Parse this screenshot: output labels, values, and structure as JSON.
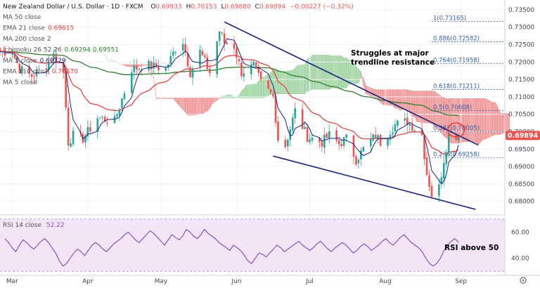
{
  "header": {
    "symbol": "New Zealand Dollar / U.S. Dollar · 1D · FXCM",
    "o_label": "O",
    "o": "0.69933",
    "h_label": "H",
    "h": "0.70153",
    "l_label": "L",
    "l": "0.69880",
    "c_label": "C",
    "c": "0.69894",
    "change": "−0.00227 (−0.32%)"
  },
  "legend": [
    {
      "label": "MA 50 close",
      "value": "",
      "color": "#777777"
    },
    {
      "label": "EMA 21 close",
      "value": "0.69615",
      "color": "#e53935"
    },
    {
      "label": "MA 200 close 2",
      "value": "",
      "color": "#777777"
    },
    {
      "label": "Ichimoku 26 52 26",
      "value": "0.69294 0.69551",
      "color": "#2e7d32"
    },
    {
      "label": "MA 5 close",
      "value": "0.69729",
      "color": "#1a237e"
    },
    {
      "label": "EMA 110 close",
      "value": "0.70370",
      "color": "#e53935"
    },
    {
      "label": "MA 5 close",
      "value": "",
      "color": "#777777"
    }
  ],
  "colors": {
    "up": "#26a69a",
    "down": "#ef5350",
    "trendline": "#1a237e",
    "ema21": "#e53935",
    "ma": "#1a237e",
    "ema110": "#2e7d32",
    "kumo_bull": "#a5d6a7",
    "kumo_bear": "#ef9a9a",
    "fib": "#3a5ea8",
    "rsi": "#7e57c2",
    "rsi_bg": "#f3e5f5",
    "price_badge": "#ef5350"
  },
  "annotations": {
    "trendline_note": [
      "Struggles at major",
      "trendline resistance"
    ],
    "rsi_note": "RSI above 50"
  },
  "price_badge": "0.69894",
  "chart_data": {
    "type": "candlestick",
    "ylim": [
      0.6765,
      0.737
    ],
    "y_ticks": [
      "0.73500",
      "0.73000",
      "0.72500",
      "0.72000",
      "0.71500",
      "0.71000",
      "0.70500",
      "0.70000",
      "0.69500",
      "0.69000",
      "0.68500",
      "0.68000"
    ],
    "x_ticks": [
      "Mar",
      "Apr",
      "May",
      "Jun",
      "Jul",
      "Aug",
      "Sep"
    ],
    "fib_levels": [
      {
        "ratio": "1",
        "price": 0.73165,
        "label": "1(0.73165)"
      },
      {
        "ratio": "0.886",
        "price": 0.72582,
        "label": "0.886(0.72582)"
      },
      {
        "ratio": "0.764",
        "price": 0.71958,
        "label": "0.764(0.71958)"
      },
      {
        "ratio": "0.618",
        "price": 0.71211,
        "label": "0.618(0.71211)"
      },
      {
        "ratio": "0.5",
        "price": 0.70608,
        "label": "0.5(0.70608)"
      },
      {
        "ratio": "0.382",
        "price": 0.70005,
        "label": "0.382(0.70005)"
      },
      {
        "ratio": "0.236",
        "price": 0.69258,
        "label": "0.236(0.69258)"
      }
    ],
    "close_anchors": [
      {
        "date": "2021-02-25",
        "close": 0.723
      },
      {
        "date": "2021-03-01",
        "close": 0.723
      },
      {
        "date": "2021-03-04",
        "close": 0.718
      },
      {
        "date": "2021-03-09",
        "close": 0.716
      },
      {
        "date": "2021-03-15",
        "close": 0.719
      },
      {
        "date": "2021-03-18",
        "close": 0.722
      },
      {
        "date": "2021-03-22",
        "close": 0.717
      },
      {
        "date": "2021-03-24",
        "close": 0.697
      },
      {
        "date": "2021-03-26",
        "close": 0.699
      },
      {
        "date": "2021-03-30",
        "close": 0.698
      },
      {
        "date": "2021-04-05",
        "close": 0.704
      },
      {
        "date": "2021-04-12",
        "close": 0.703
      },
      {
        "date": "2021-04-19",
        "close": 0.718
      },
      {
        "date": "2021-04-26",
        "close": 0.719
      },
      {
        "date": "2021-05-03",
        "close": 0.718
      },
      {
        "date": "2021-05-07",
        "close": 0.724
      },
      {
        "date": "2021-05-10",
        "close": 0.726
      },
      {
        "date": "2021-05-13",
        "close": 0.717
      },
      {
        "date": "2021-05-17",
        "close": 0.723
      },
      {
        "date": "2021-05-21",
        "close": 0.717
      },
      {
        "date": "2021-05-25",
        "close": 0.729
      },
      {
        "date": "2021-05-27",
        "close": 0.7255
      },
      {
        "date": "2021-05-31",
        "close": 0.7245
      },
      {
        "date": "2021-06-03",
        "close": 0.717
      },
      {
        "date": "2021-06-08",
        "close": 0.719
      },
      {
        "date": "2021-06-11",
        "close": 0.714
      },
      {
        "date": "2021-06-16",
        "close": 0.71
      },
      {
        "date": "2021-06-18",
        "close": 0.698
      },
      {
        "date": "2021-06-21",
        "close": 0.696
      },
      {
        "date": "2021-06-25",
        "close": 0.706
      },
      {
        "date": "2021-06-30",
        "close": 0.6985
      },
      {
        "date": "2021-07-06",
        "close": 0.697
      },
      {
        "date": "2021-07-09",
        "close": 0.699
      },
      {
        "date": "2021-07-13",
        "close": 0.6965
      },
      {
        "date": "2021-07-16",
        "close": 0.698
      },
      {
        "date": "2021-07-20",
        "close": 0.692
      },
      {
        "date": "2021-07-23",
        "close": 0.695
      },
      {
        "date": "2021-07-28",
        "close": 0.699
      },
      {
        "date": "2021-07-30",
        "close": 0.697
      },
      {
        "date": "2021-08-05",
        "close": 0.702
      },
      {
        "date": "2021-08-10",
        "close": 0.703
      },
      {
        "date": "2021-08-13",
        "close": 0.701
      },
      {
        "date": "2021-08-16",
        "close": 0.699
      },
      {
        "date": "2021-08-18",
        "close": 0.688
      },
      {
        "date": "2021-08-20",
        "close": 0.682
      },
      {
        "date": "2021-08-23",
        "close": 0.684
      },
      {
        "date": "2021-08-25",
        "close": 0.692
      },
      {
        "date": "2021-08-27",
        "close": 0.699
      },
      {
        "date": "2021-08-31",
        "close": 0.6989
      }
    ],
    "trendlines": [
      {
        "name": "",
        "from": {
          "date": "2021-05-27",
          "price": 0.7315
        },
        "to": {
          "date": "2021-09-08",
          "price": 0.6962
        }
      },
      {
        "name": "",
        "from": {
          "date": "2021-06-16",
          "price": 0.693
        },
        "to": {
          "date": "2021-09-07",
          "price": 0.6777
        }
      }
    ],
    "highlight": {
      "date": "2021-08-30",
      "price": 0.7005
    },
    "rsi": {
      "label": "RSI 14 close",
      "value": "52.22",
      "ylim": [
        28,
        72
      ],
      "y_ticks": [
        "60.00",
        "40.00"
      ],
      "values": [
        55,
        52,
        48,
        45,
        50,
        54,
        52,
        49,
        47,
        50,
        53,
        55,
        52,
        48,
        44,
        38,
        34,
        36,
        40,
        44,
        47,
        45,
        42,
        46,
        50,
        52,
        50,
        47,
        45,
        48,
        51,
        53,
        55,
        58,
        60,
        57,
        54,
        52,
        55,
        58,
        61,
        59,
        56,
        53,
        50,
        54,
        58,
        56,
        54,
        57,
        62,
        60,
        57,
        55,
        58,
        62,
        59,
        57,
        55,
        52,
        50,
        48,
        46,
        50,
        48,
        46,
        42,
        38,
        36,
        40,
        44,
        43,
        41,
        44,
        47,
        50,
        48,
        45,
        47,
        49,
        51,
        53,
        50,
        48,
        46,
        48,
        51,
        53,
        50,
        47,
        45,
        48,
        50,
        52,
        50,
        47,
        44,
        46,
        49,
        51,
        49,
        46,
        48,
        50,
        53,
        55,
        52,
        50,
        53,
        56,
        58,
        55,
        52,
        50,
        48,
        45,
        40,
        36,
        34,
        36,
        40,
        46,
        50,
        53,
        55,
        52.2
      ]
    }
  }
}
